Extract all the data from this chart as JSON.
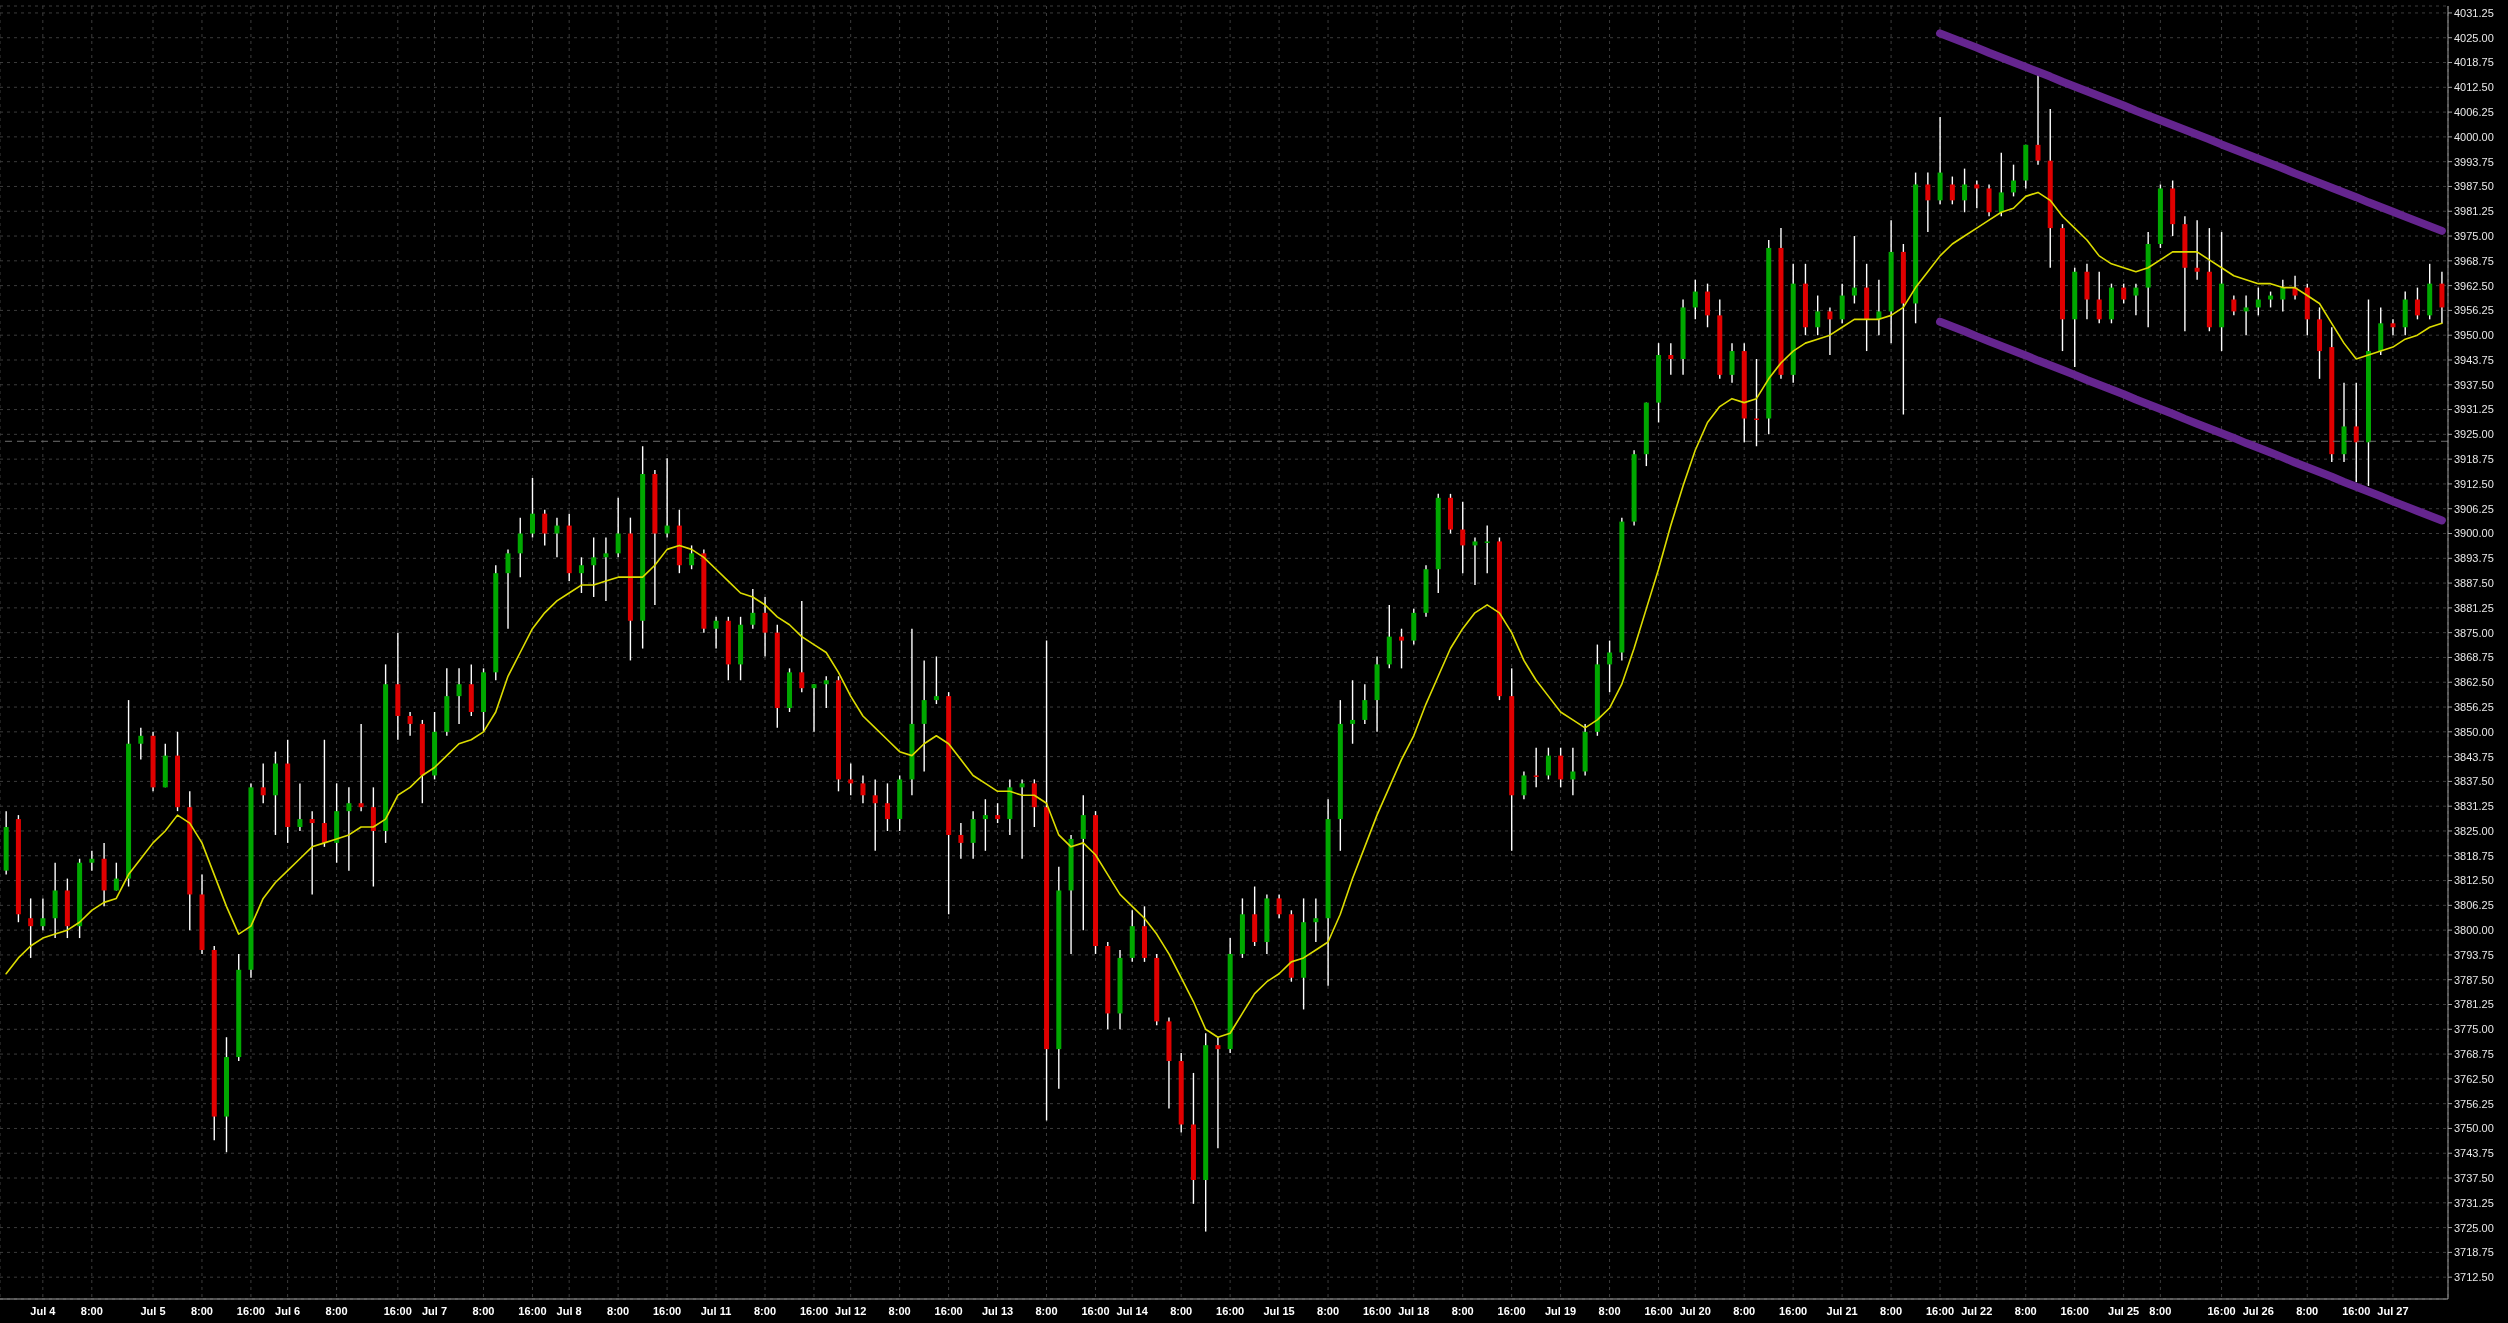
{
  "chart_data": {
    "type": "candlestick",
    "categories": [
      null,
      null,
      null,
      "Jul 4",
      null,
      null,
      null,
      "8:00",
      null,
      null,
      null,
      null,
      "Jul 5",
      null,
      null,
      null,
      "8:00",
      null,
      null,
      null,
      "16:00",
      null,
      null,
      "Jul 6",
      null,
      null,
      null,
      "8:00",
      null,
      null,
      null,
      null,
      "16:00",
      null,
      null,
      "Jul 7",
      null,
      null,
      null,
      "8:00",
      null,
      null,
      null,
      "16:00",
      null,
      null,
      "Jul 8",
      null,
      null,
      null,
      "8:00",
      null,
      null,
      null,
      "16:00",
      null,
      null,
      null,
      "Jul 11",
      null,
      null,
      null,
      "8:00",
      null,
      null,
      null,
      "16:00",
      null,
      null,
      "Jul 12",
      null,
      null,
      null,
      "8:00",
      null,
      null,
      null,
      "16:00",
      null,
      null,
      null,
      "Jul 13",
      null,
      null,
      null,
      "8:00",
      null,
      null,
      null,
      "16:00",
      null,
      null,
      "Jul 14",
      null,
      null,
      null,
      "8:00",
      null,
      null,
      null,
      "16:00",
      null,
      null,
      null,
      "Jul 15",
      null,
      null,
      null,
      "8:00",
      null,
      null,
      null,
      "16:00",
      null,
      null,
      "Jul 18",
      null,
      null,
      null,
      "8:00",
      null,
      null,
      null,
      "16:00",
      null,
      null,
      null,
      "Jul 19",
      null,
      null,
      null,
      "8:00",
      null,
      null,
      null,
      "16:00",
      null,
      null,
      "Jul 20",
      null,
      null,
      null,
      "8:00",
      null,
      null,
      null,
      "16:00",
      null,
      null,
      null,
      "Jul 21",
      null,
      null,
      null,
      "8:00",
      null,
      null,
      null,
      "16:00",
      null,
      null,
      "Jul 22",
      null,
      null,
      null,
      "8:00",
      null,
      null,
      null,
      "16:00",
      null,
      null,
      null,
      "Jul 25",
      null,
      null,
      "8:00",
      null,
      null,
      null,
      null,
      "16:00",
      null,
      null,
      "Jul 26",
      null,
      null,
      null,
      "8:00",
      null,
      null,
      null,
      "16:00",
      null,
      null,
      "Jul 27",
      null,
      null,
      null,
      null
    ],
    "ohlc": [
      [
        3815,
        3830,
        3814,
        3826
      ],
      [
        3828,
        3829,
        3802,
        3804
      ],
      [
        3803,
        3808,
        3793,
        3801
      ],
      [
        3801,
        3808,
        3800,
        3803
      ],
      [
        3803,
        3817,
        3798,
        3810
      ],
      [
        3810,
        3813,
        3798,
        3801
      ],
      [
        3801,
        3818,
        3798,
        3817
      ],
      [
        3817,
        3820,
        3815,
        3818
      ],
      [
        3818,
        3822,
        3806,
        3810
      ],
      [
        3810,
        3817,
        3810,
        3813
      ],
      [
        3813,
        3858,
        3811,
        3847
      ],
      [
        3847,
        3851,
        3843,
        3849
      ],
      [
        3849,
        3850,
        3835,
        3836
      ],
      [
        3836,
        3847,
        3836,
        3844
      ],
      [
        3844,
        3850,
        3830,
        3831
      ],
      [
        3831,
        3835,
        3800,
        3809
      ],
      [
        3809,
        3814,
        3794,
        3795
      ],
      [
        3795,
        3796,
        3747,
        3753
      ],
      [
        3753,
        3773,
        3744,
        3768
      ],
      [
        3768,
        3794,
        3767,
        3790
      ],
      [
        3790,
        3837,
        3788,
        3836
      ],
      [
        3836,
        3842,
        3832,
        3834
      ],
      [
        3834,
        3845,
        3824,
        3842
      ],
      [
        3842,
        3848,
        3822,
        3826
      ],
      [
        3826,
        3837,
        3825,
        3828
      ],
      [
        3828,
        3830,
        3809,
        3827
      ],
      [
        3827,
        3848,
        3821,
        3822
      ],
      [
        3822,
        3837,
        3817,
        3830
      ],
      [
        3830,
        3836,
        3815,
        3832
      ],
      [
        3832,
        3852,
        3830,
        3831
      ],
      [
        3831,
        3836,
        3811,
        3825
      ],
      [
        3825,
        3867,
        3822,
        3862
      ],
      [
        3862,
        3875,
        3848,
        3854
      ],
      [
        3854,
        3855,
        3849,
        3852
      ],
      [
        3852,
        3853,
        3832,
        3839
      ],
      [
        3839,
        3855,
        3838,
        3850
      ],
      [
        3850,
        3866,
        3849,
        3859
      ],
      [
        3859,
        3866,
        3852,
        3862
      ],
      [
        3862,
        3867,
        3854,
        3855
      ],
      [
        3855,
        3866,
        3850,
        3865
      ],
      [
        3865,
        3892,
        3863,
        3890
      ],
      [
        3890,
        3896,
        3876,
        3895
      ],
      [
        3895,
        3904,
        3889,
        3900
      ],
      [
        3900,
        3914,
        3899,
        3905
      ],
      [
        3905,
        3906,
        3897,
        3900
      ],
      [
        3900,
        3904,
        3894,
        3902
      ],
      [
        3902,
        3905,
        3888,
        3890
      ],
      [
        3890,
        3894,
        3885,
        3892
      ],
      [
        3892,
        3899,
        3884,
        3894
      ],
      [
        3894,
        3899,
        3883,
        3895
      ],
      [
        3895,
        3909,
        3894,
        3900
      ],
      [
        3900,
        3904,
        3868,
        3878
      ],
      [
        3878,
        3922,
        3871,
        3915
      ],
      [
        3915,
        3916,
        3882,
        3900
      ],
      [
        3900,
        3919,
        3899,
        3902
      ],
      [
        3902,
        3906,
        3890,
        3892
      ],
      [
        3892,
        3897,
        3891,
        3895
      ],
      [
        3895,
        3896,
        3875,
        3876
      ],
      [
        3876,
        3879,
        3871,
        3878
      ],
      [
        3878,
        3879,
        3863,
        3867
      ],
      [
        3867,
        3879,
        3863,
        3877
      ],
      [
        3877,
        3886,
        3876,
        3880
      ],
      [
        3880,
        3884,
        3869,
        3875
      ],
      [
        3875,
        3877,
        3851,
        3856
      ],
      [
        3856,
        3866,
        3855,
        3865
      ],
      [
        3865,
        3883,
        3860,
        3861
      ],
      [
        3861,
        3862,
        3850,
        3862
      ],
      [
        3862,
        3864,
        3856,
        3863
      ],
      [
        3863,
        3864,
        3835,
        3838
      ],
      [
        3838,
        3842,
        3834,
        3837
      ],
      [
        3837,
        3839,
        3832,
        3834
      ],
      [
        3834,
        3838,
        3820,
        3832
      ],
      [
        3832,
        3837,
        3825,
        3828
      ],
      [
        3828,
        3839,
        3825,
        3838
      ],
      [
        3838,
        3876,
        3834,
        3852
      ],
      [
        3852,
        3868,
        3840,
        3858
      ],
      [
        3858,
        3869,
        3857,
        3859
      ],
      [
        3859,
        3860,
        3804,
        3824
      ],
      [
        3824,
        3827,
        3818,
        3822
      ],
      [
        3822,
        3830,
        3818,
        3828
      ],
      [
        3828,
        3833,
        3820,
        3829
      ],
      [
        3829,
        3832,
        3827,
        3828
      ],
      [
        3828,
        3838,
        3824,
        3836
      ],
      [
        3836,
        3838,
        3818,
        3837
      ],
      [
        3837,
        3838,
        3826,
        3831
      ],
      [
        3831,
        3873,
        3752,
        3770
      ],
      [
        3770,
        3816,
        3760,
        3810
      ],
      [
        3810,
        3824,
        3794,
        3823
      ],
      [
        3823,
        3834,
        3800,
        3829
      ],
      [
        3829,
        3830,
        3794,
        3796
      ],
      [
        3796,
        3797,
        3775,
        3779
      ],
      [
        3779,
        3795,
        3775,
        3793
      ],
      [
        3793,
        3805,
        3792,
        3801
      ],
      [
        3801,
        3806,
        3792,
        3793
      ],
      [
        3793,
        3794,
        3776,
        3777
      ],
      [
        3777,
        3778,
        3755,
        3767
      ],
      [
        3767,
        3769,
        3749,
        3751
      ],
      [
        3751,
        3764,
        3731,
        3737
      ],
      [
        3737,
        3774,
        3724,
        3771
      ],
      [
        3771,
        3773,
        3745,
        3770
      ],
      [
        3770,
        3798,
        3769,
        3794
      ],
      [
        3794,
        3808,
        3793,
        3804
      ],
      [
        3804,
        3811,
        3796,
        3797
      ],
      [
        3797,
        3809,
        3794,
        3808
      ],
      [
        3808,
        3809,
        3803,
        3804
      ],
      [
        3804,
        3805,
        3787,
        3788
      ],
      [
        3788,
        3808,
        3780,
        3802
      ],
      [
        3802,
        3808,
        3797,
        3803
      ],
      [
        3803,
        3833,
        3786,
        3828
      ],
      [
        3828,
        3858,
        3820,
        3852
      ],
      [
        3852,
        3863,
        3847,
        3853
      ],
      [
        3853,
        3862,
        3852,
        3858
      ],
      [
        3858,
        3869,
        3850,
        3867
      ],
      [
        3867,
        3882,
        3866,
        3874
      ],
      [
        3874,
        3876,
        3866,
        3873
      ],
      [
        3873,
        3881,
        3872,
        3880
      ],
      [
        3880,
        3892,
        3879,
        3891
      ],
      [
        3891,
        3910,
        3885,
        3909
      ],
      [
        3909,
        3910,
        3900,
        3901
      ],
      [
        3901,
        3908,
        3890,
        3897
      ],
      [
        3897,
        3899,
        3887,
        3898
      ],
      [
        3898,
        3902,
        3890,
        3898
      ],
      [
        3898,
        3899,
        3858,
        3859
      ],
      [
        3859,
        3866,
        3820,
        3834
      ],
      [
        3834,
        3840,
        3833,
        3839
      ],
      [
        3839,
        3846,
        3836,
        3839
      ],
      [
        3839,
        3846,
        3838,
        3844
      ],
      [
        3844,
        3846,
        3836,
        3838
      ],
      [
        3838,
        3846,
        3834,
        3840
      ],
      [
        3840,
        3852,
        3839,
        3850
      ],
      [
        3850,
        3872,
        3849,
        3867
      ],
      [
        3867,
        3873,
        3860,
        3870
      ],
      [
        3870,
        3904,
        3868,
        3903
      ],
      [
        3903,
        3921,
        3902,
        3920
      ],
      [
        3920,
        3933,
        3917,
        3933
      ],
      [
        3933,
        3948,
        3928,
        3945
      ],
      [
        3945,
        3948,
        3940,
        3944
      ],
      [
        3944,
        3959,
        3940,
        3957
      ],
      [
        3957,
        3964,
        3954,
        3961
      ],
      [
        3961,
        3963,
        3952,
        3955
      ],
      [
        3955,
        3959,
        3939,
        3940
      ],
      [
        3940,
        3948,
        3938,
        3946
      ],
      [
        3946,
        3948,
        3923,
        3929
      ],
      [
        3929,
        3944,
        3922,
        3929
      ],
      [
        3929,
        3974,
        3925,
        3972
      ],
      [
        3972,
        3977,
        3939,
        3940
      ],
      [
        3940,
        3968,
        3938,
        3963
      ],
      [
        3963,
        3968,
        3950,
        3952
      ],
      [
        3952,
        3960,
        3950,
        3956
      ],
      [
        3956,
        3957,
        3945,
        3954
      ],
      [
        3954,
        3963,
        3953,
        3960
      ],
      [
        3960,
        3975,
        3958,
        3962
      ],
      [
        3962,
        3968,
        3946,
        3954
      ],
      [
        3954,
        3964,
        3950,
        3956
      ],
      [
        3956,
        3979,
        3948,
        3971
      ],
      [
        3971,
        3973,
        3930,
        3958
      ],
      [
        3958,
        3991,
        3953,
        3988
      ],
      [
        3988,
        3991,
        3976,
        3984
      ],
      [
        3984,
        4005,
        3983,
        3991
      ],
      [
        3988,
        3990,
        3983,
        3984
      ],
      [
        3984,
        3992,
        3981,
        3988
      ],
      [
        3988,
        3989,
        3982,
        3987
      ],
      [
        3987,
        3988,
        3980,
        3981
      ],
      [
        3981,
        3996,
        3980,
        3986
      ],
      [
        3986,
        3993,
        3985,
        3989
      ],
      [
        3989,
        3998,
        3987,
        3998
      ],
      [
        3998,
        4016,
        3993,
        3994
      ],
      [
        3994,
        4007,
        3967,
        3977
      ],
      [
        3977,
        3978,
        3946,
        3954
      ],
      [
        3954,
        3967,
        3942,
        3966
      ],
      [
        3966,
        3968,
        3954,
        3959
      ],
      [
        3959,
        3966,
        3953,
        3954
      ],
      [
        3954,
        3963,
        3953,
        3962
      ],
      [
        3962,
        3963,
        3958,
        3959
      ],
      [
        3960,
        3963,
        3955,
        3962
      ],
      [
        3962,
        3976,
        3952,
        3973
      ],
      [
        3973,
        3988,
        3972,
        3987
      ],
      [
        3987,
        3989,
        3975,
        3978
      ],
      [
        3978,
        3980,
        3951,
        3967
      ],
      [
        3967,
        3979,
        3964,
        3966
      ],
      [
        3966,
        3977,
        3951,
        3952
      ],
      [
        3952,
        3976,
        3946,
        3963
      ],
      [
        3959,
        3960,
        3955,
        3956
      ],
      [
        3956,
        3960,
        3950,
        3957
      ],
      [
        3957,
        3962,
        3955,
        3959
      ],
      [
        3959,
        3961,
        3957,
        3960
      ],
      [
        3959,
        3964,
        3956,
        3962
      ],
      [
        3962,
        3965,
        3959,
        3960
      ],
      [
        3962,
        3963,
        3950,
        3954
      ],
      [
        3954,
        3957,
        3939,
        3946
      ],
      [
        3947,
        3952,
        3918,
        3920
      ],
      [
        3920,
        3938,
        3918,
        3927
      ],
      [
        3927,
        3938,
        3913,
        3923
      ],
      [
        3923,
        3959,
        3912,
        3946
      ],
      [
        3946,
        3957,
        3945,
        3953
      ],
      [
        3953,
        3954,
        3950,
        3952
      ],
      [
        3952,
        3961,
        3950,
        3959
      ],
      [
        3959,
        3962,
        3954,
        3955
      ],
      [
        3955,
        3968,
        3954,
        3963
      ],
      [
        3963,
        3966,
        3953,
        3957
      ]
    ],
    "colors": [
      "#00a800",
      "#e00000",
      "#e00000",
      "#00a800",
      "#00a800",
      "#e00000",
      "#00a800",
      "#00a800",
      "#e00000",
      "#00a800",
      "#00a800",
      "#00a800",
      "#e00000",
      "#00a800",
      "#e00000",
      "#e00000",
      "#e00000",
      "#e00000",
      "#00a800",
      "#00a800",
      "#00a800",
      "#e00000",
      "#00a800",
      "#e00000",
      "#00a800",
      "#e00000",
      "#e00000",
      "#00a800",
      "#00a800",
      "#e00000",
      "#e00000",
      "#00a800",
      "#e00000",
      "#e00000",
      "#e00000",
      "#00a800",
      "#00a800",
      "#00a800",
      "#e00000",
      "#00a800",
      "#00a800",
      "#00a800",
      "#00a800",
      "#00a800",
      "#e00000",
      "#00a800",
      "#e00000",
      "#00a800",
      "#00a800",
      "#00a800",
      "#00a800",
      "#e00000",
      "#00a800",
      "#e00000",
      "#00a800",
      "#e00000",
      "#00a800",
      "#e00000",
      "#00a800",
      "#e00000",
      "#00a800",
      "#00a800",
      "#e00000",
      "#e00000",
      "#00a800",
      "#e00000",
      "#00a800",
      "#00a800",
      "#e00000",
      "#e00000",
      "#e00000",
      "#e00000",
      "#e00000",
      "#00a800",
      "#00a800",
      "#00a800",
      "#00a800",
      "#e00000",
      "#e00000",
      "#00a800",
      "#00a800",
      "#e00000",
      "#00a800",
      "#00a800",
      "#e00000",
      "#e00000",
      "#00a800",
      "#00a800",
      "#00a800",
      "#e00000",
      "#e00000",
      "#00a800",
      "#00a800",
      "#e00000",
      "#e00000",
      "#e00000",
      "#e00000",
      "#e00000",
      "#00a800",
      "#e00000",
      "#00a800",
      "#00a800",
      "#e00000",
      "#00a800",
      "#e00000",
      "#e00000",
      "#00a800",
      "#00a800",
      "#00a800",
      "#00a800",
      "#00a800",
      "#00a800",
      "#00a800",
      "#00a800",
      "#e00000",
      "#00a800",
      "#00a800",
      "#00a800",
      "#e00000",
      "#e00000",
      "#00a800",
      "#00a800",
      "#e00000",
      "#e00000",
      "#00a800",
      "#e00000",
      "#00a800",
      "#e00000",
      "#00a800",
      "#00a800",
      "#00a800",
      "#00a800",
      "#00a800",
      "#00a800",
      "#00a800",
      "#00a800",
      "#e00000",
      "#00a800",
      "#00a800",
      "#e00000",
      "#e00000",
      "#00a800",
      "#e00000",
      "#e00000",
      "#00a800",
      "#e00000",
      "#00a800",
      "#e00000",
      "#00a800",
      "#e00000",
      "#00a800",
      "#00a800",
      "#e00000",
      "#00a800",
      "#00a800",
      "#e00000",
      "#00a800",
      "#e00000",
      "#00a800",
      "#e00000",
      "#00a800",
      "#e00000",
      "#e00000",
      "#00a800",
      "#00a800",
      "#00a800",
      "#e00000",
      "#e00000",
      "#e00000",
      "#00a800",
      "#e00000",
      "#e00000",
      "#00a800",
      "#e00000",
      "#00a800",
      "#00a800",
      "#00a800",
      "#e00000",
      "#e00000",
      "#e00000",
      "#e00000",
      "#00a800",
      "#e00000",
      "#00a800",
      "#00a800",
      "#00a800",
      "#00a800",
      "#e00000",
      "#e00000",
      "#e00000",
      "#e00000",
      "#00a800",
      "#e00000",
      "#00a800",
      "#00a800",
      "#e00000",
      "#00a800",
      "#e00000",
      "#00a800",
      "#e00000"
    ],
    "series": [
      {
        "type": "line",
        "color": "#dcdc00",
        "values": [
          3789,
          3793,
          3796,
          3798,
          3799,
          3800,
          3802,
          3805,
          3807,
          3808,
          3814,
          3818,
          3822,
          3825,
          3829,
          3827,
          3822,
          3814,
          3806,
          3799,
          3801,
          3808,
          3812,
          3815,
          3818,
          3821,
          3822,
          3823,
          3824,
          3826,
          3826,
          3828,
          3834,
          3836,
          3839,
          3841,
          3844,
          3847,
          3848,
          3850,
          3855,
          3864,
          3870,
          3876,
          3880,
          3883,
          3885,
          3887,
          3887,
          3888,
          3889,
          3889,
          3889,
          3892,
          3896,
          3897,
          3896,
          3894,
          3891,
          3888,
          3885,
          3884,
          3882,
          3879,
          3877,
          3874,
          3872,
          3870,
          3865,
          3859,
          3854,
          3851,
          3848,
          3845,
          3844,
          3847,
          3849,
          3847,
          3843,
          3839,
          3837,
          3835,
          3835,
          3834,
          3834,
          3832,
          3824,
          3821,
          3822,
          3819,
          3814,
          3809,
          3806,
          3803,
          3799,
          3794,
          3788,
          3782,
          3775,
          3773,
          3774,
          3779,
          3784,
          3787,
          3789,
          3792,
          3793,
          3795,
          3797,
          3804,
          3813,
          3821,
          3829,
          3836,
          3843,
          3849,
          3857,
          3864,
          3871,
          3876,
          3880,
          3882,
          3880,
          3875,
          3868,
          3863,
          3859,
          3855,
          3853,
          3851,
          3853,
          3856,
          3862,
          3871,
          3881,
          3891,
          3902,
          3912,
          3921,
          3928,
          3932,
          3934,
          3933,
          3934,
          3939,
          3943,
          3946,
          3948,
          3949,
          3950,
          3952,
          3954,
          3954,
          3954,
          3955,
          3957,
          3962,
          3966,
          3970,
          3973,
          3975,
          3977,
          3979,
          3981,
          3982,
          3985,
          3986,
          3984,
          3980,
          3977,
          3974,
          3970,
          3968,
          3967,
          3966,
          3967,
          3969,
          3971,
          3971,
          3971,
          3969,
          3967,
          3965,
          3964,
          3963,
          3963,
          3962,
          3962,
          3960,
          3958,
          3953,
          3948,
          3944,
          3945,
          3946,
          3947,
          3949,
          3950,
          3952,
          3953
        ]
      },
      {
        "type": "line",
        "color": "#65258f",
        "values": [
          null,
          null,
          null,
          null,
          null,
          null,
          null,
          null,
          null,
          null,
          null,
          null,
          null,
          null,
          null,
          null,
          null,
          null,
          null,
          null,
          null,
          null,
          null,
          null,
          null,
          null,
          null,
          null,
          null,
          null,
          null,
          null,
          null,
          null,
          null,
          null,
          null,
          null,
          null,
          null,
          null,
          null,
          null,
          null,
          null,
          null,
          null,
          null,
          null,
          null,
          null,
          null,
          null,
          null,
          null,
          null,
          null,
          null,
          null,
          null,
          null,
          null,
          null,
          null,
          null,
          null,
          null,
          null,
          null,
          null,
          null,
          null,
          null,
          null,
          null,
          null,
          null,
          null,
          null,
          null,
          null,
          null,
          null,
          null,
          null,
          null,
          null,
          null,
          null,
          null,
          null,
          null,
          null,
          null,
          null,
          null,
          null,
          null,
          null,
          null,
          null,
          null,
          null,
          null,
          null,
          null,
          null,
          null,
          null,
          null,
          null,
          null,
          null,
          null,
          null,
          null,
          null,
          null,
          null,
          null,
          null,
          null,
          null,
          null,
          null,
          null,
          null,
          null,
          null,
          null,
          null,
          null,
          null,
          null,
          null,
          null,
          null,
          null,
          null,
          null,
          null,
          null,
          null,
          null,
          null,
          null,
          null,
          null,
          null,
          null,
          null,
          null,
          null,
          null,
          null,
          null,
          null,
          null,
          4026.1,
          4024.9,
          4023.7,
          4022.5,
          4021.2,
          4020.0,
          4018.8,
          4017.6,
          4016.4,
          4015.2,
          4013.9,
          4012.7,
          4011.5,
          4010.3,
          4009.1,
          4007.9,
          4006.6,
          4005.4,
          4004.2,
          4003.0,
          4001.8,
          4000.6,
          3999.4,
          3998.1,
          3996.9,
          3995.7,
          3994.5,
          3993.3,
          3992.1,
          3990.8,
          3989.6,
          3988.4,
          3987.2,
          3986.0,
          3984.8,
          3983.5,
          3982.3,
          3981.1,
          3979.9,
          3978.7,
          3977.5,
          3976.3
        ]
      },
      {
        "type": "line",
        "color": "#65258f",
        "values": [
          null,
          null,
          null,
          null,
          null,
          null,
          null,
          null,
          null,
          null,
          null,
          null,
          null,
          null,
          null,
          null,
          null,
          null,
          null,
          null,
          null,
          null,
          null,
          null,
          null,
          null,
          null,
          null,
          null,
          null,
          null,
          null,
          null,
          null,
          null,
          null,
          null,
          null,
          null,
          null,
          null,
          null,
          null,
          null,
          null,
          null,
          null,
          null,
          null,
          null,
          null,
          null,
          null,
          null,
          null,
          null,
          null,
          null,
          null,
          null,
          null,
          null,
          null,
          null,
          null,
          null,
          null,
          null,
          null,
          null,
          null,
          null,
          null,
          null,
          null,
          null,
          null,
          null,
          null,
          null,
          null,
          null,
          null,
          null,
          null,
          null,
          null,
          null,
          null,
          null,
          null,
          null,
          null,
          null,
          null,
          null,
          null,
          null,
          null,
          null,
          null,
          null,
          null,
          null,
          null,
          null,
          null,
          null,
          null,
          null,
          null,
          null,
          null,
          null,
          null,
          null,
          null,
          null,
          null,
          null,
          null,
          null,
          null,
          null,
          null,
          null,
          null,
          null,
          null,
          null,
          null,
          null,
          null,
          null,
          null,
          null,
          null,
          null,
          null,
          null,
          null,
          null,
          null,
          null,
          null,
          null,
          null,
          null,
          null,
          null,
          null,
          null,
          null,
          null,
          null,
          null,
          null,
          null,
          3953.4,
          3952.2,
          3951.0,
          3949.7,
          3948.5,
          3947.3,
          3946.1,
          3944.9,
          3943.6,
          3942.4,
          3941.2,
          3940.0,
          3938.7,
          3937.5,
          3936.3,
          3935.1,
          3933.8,
          3932.6,
          3931.4,
          3930.2,
          3928.9,
          3927.7,
          3926.5,
          3925.3,
          3924.1,
          3922.8,
          3921.6,
          3920.4,
          3919.2,
          3917.9,
          3916.7,
          3915.5,
          3914.3,
          3913.0,
          3911.8,
          3910.6,
          3909.4,
          3908.1,
          3906.9,
          3905.7,
          3904.5,
          3903.3
        ]
      }
    ],
    "ylim": [
      3707,
      4033
    ],
    "yticks": [
      {
        "value": 3712.5,
        "label": "3712.50"
      },
      {
        "value": 3718.75,
        "label": "3718.75"
      },
      {
        "value": 3725,
        "label": "3725.00"
      },
      {
        "value": 3731.25,
        "label": "3731.25"
      },
      {
        "value": 3737.5,
        "label": "3737.50"
      },
      {
        "value": 3743.75,
        "label": "3743.75"
      },
      {
        "value": 3750,
        "label": "3750.00"
      },
      {
        "value": 3756.25,
        "label": "3756.25"
      },
      {
        "value": 3762.5,
        "label": "3762.50"
      },
      {
        "value": 3768.75,
        "label": "3768.75"
      },
      {
        "value": 3775,
        "label": "3775.00"
      },
      {
        "value": 3781.25,
        "label": "3781.25"
      },
      {
        "value": 3787.5,
        "label": "3787.50"
      },
      {
        "value": 3793.75,
        "label": "3793.75"
      },
      {
        "value": 3800,
        "label": "3800.00"
      },
      {
        "value": 3806.25,
        "label": "3806.25"
      },
      {
        "value": 3812.5,
        "label": "3812.50"
      },
      {
        "value": 3818.75,
        "label": "3818.75"
      },
      {
        "value": 3825,
        "label": "3825.00"
      },
      {
        "value": 3831.25,
        "label": "3831.25"
      },
      {
        "value": 3837.5,
        "label": "3837.50"
      },
      {
        "value": 3843.75,
        "label": "3843.75"
      },
      {
        "value": 3850,
        "label": "3850.00"
      },
      {
        "value": 3856.25,
        "label": "3856.25"
      },
      {
        "value": 3862.5,
        "label": "3862.50"
      },
      {
        "value": 3868.75,
        "label": "3868.75"
      },
      {
        "value": 3875,
        "label": "3875.00"
      },
      {
        "value": 3881.25,
        "label": "3881.25"
      },
      {
        "value": 3887.5,
        "label": "3887.50"
      },
      {
        "value": 3893.75,
        "label": "3893.75"
      },
      {
        "value": 3900,
        "label": "3900.00"
      },
      {
        "value": 3906.25,
        "label": "3906.25"
      },
      {
        "value": 3912.5,
        "label": "3912.50"
      },
      {
        "value": 3918.75,
        "label": "3918.75"
      },
      {
        "value": 3925,
        "label": "3925.00"
      },
      {
        "value": 3931.25,
        "label": "3931.25"
      },
      {
        "value": 3937.5,
        "label": "3937.50"
      },
      {
        "value": 3943.75,
        "label": "3943.75"
      },
      {
        "value": 3950,
        "label": "3950.00"
      },
      {
        "value": 3956.25,
        "label": "3956.25"
      },
      {
        "value": 3962.5,
        "label": "3962.50"
      },
      {
        "value": 3968.75,
        "label": "3968.75"
      },
      {
        "value": 3975,
        "label": "3975.00"
      },
      {
        "value": 3981.25,
        "label": "3981.25"
      },
      {
        "value": 3987.5,
        "label": "3987.50"
      },
      {
        "value": 3993.75,
        "label": "3993.75"
      },
      {
        "value": 4000,
        "label": "4000.00"
      },
      {
        "value": 4006.25,
        "label": "4006.25"
      },
      {
        "value": 4012.5,
        "label": "4012.50"
      },
      {
        "value": 4018.75,
        "label": "4018.75"
      },
      {
        "value": 4025,
        "label": "4025.00"
      },
      {
        "value": 4031.25,
        "label": "4031.25"
      }
    ],
    "grid": true,
    "ref_lines": [
      {
        "axis": "y",
        "value": 3923.25,
        "color": "#6e6e6e",
        "line_style": "dashed"
      }
    ]
  }
}
